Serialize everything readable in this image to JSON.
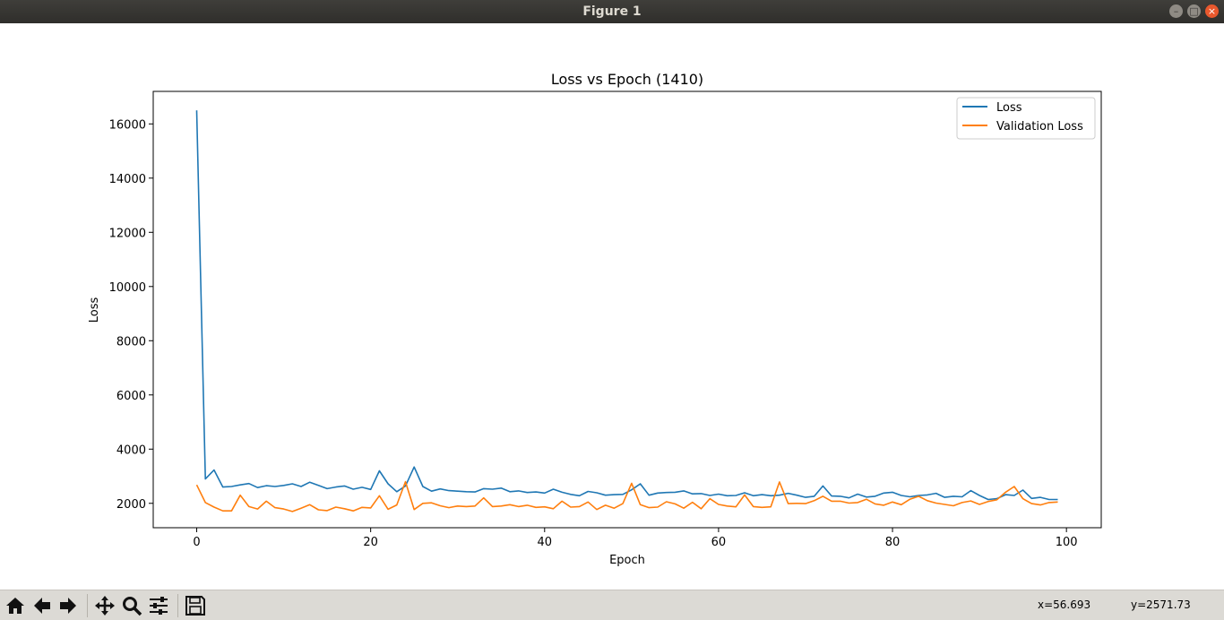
{
  "window": {
    "title": "Figure 1"
  },
  "icons": {
    "home": "home-icon",
    "back": "arrow-left-icon",
    "forward": "arrow-right-icon",
    "pan": "move-icon",
    "zoom": "magnifier-icon",
    "configure": "sliders-icon",
    "save": "floppy-disk-icon"
  },
  "status": {
    "x_readout": "x=56.693",
    "y_readout": "y=2571.73"
  },
  "colors": {
    "loss": "#1f77b4",
    "validation": "#ff7f0e",
    "toolbar": "#dcdad5",
    "titlebar": "#3a3935"
  },
  "chart_data": {
    "type": "line",
    "title": "Loss vs Epoch (1410)",
    "xlabel": "Epoch",
    "ylabel": "Loss",
    "xlim": [
      -5,
      104
    ],
    "ylim": [
      1100,
      17200
    ],
    "xticks": [
      0,
      20,
      40,
      60,
      80,
      100
    ],
    "yticks": [
      2000,
      4000,
      6000,
      8000,
      10000,
      12000,
      14000,
      16000
    ],
    "grid": false,
    "legend": "top-right",
    "x": [
      0,
      1,
      2,
      3,
      4,
      5,
      6,
      7,
      8,
      9,
      10,
      11,
      12,
      13,
      14,
      15,
      16,
      17,
      18,
      19,
      20,
      21,
      22,
      23,
      24,
      25,
      26,
      27,
      28,
      29,
      30,
      31,
      32,
      33,
      34,
      35,
      36,
      37,
      38,
      39,
      40,
      41,
      42,
      43,
      44,
      45,
      46,
      47,
      48,
      49,
      50,
      51,
      52,
      53,
      54,
      55,
      56,
      57,
      58,
      59,
      60,
      61,
      62,
      63,
      64,
      65,
      66,
      67,
      68,
      69,
      70,
      71,
      72,
      73,
      74,
      75,
      76,
      77,
      78,
      79,
      80,
      81,
      82,
      83,
      84,
      85,
      86,
      87,
      88,
      89,
      90,
      91,
      92,
      93,
      94,
      95,
      96,
      97,
      98,
      99
    ],
    "series": [
      {
        "name": "Loss",
        "values": [
          16500,
          2900,
          3230,
          2600,
          2620,
          2680,
          2730,
          2580,
          2650,
          2620,
          2660,
          2720,
          2620,
          2780,
          2660,
          2540,
          2600,
          2640,
          2520,
          2590,
          2510,
          3200,
          2720,
          2430,
          2640,
          3340,
          2620,
          2450,
          2530,
          2470,
          2450,
          2430,
          2420,
          2540,
          2520,
          2560,
          2430,
          2460,
          2400,
          2420,
          2380,
          2520,
          2410,
          2330,
          2280,
          2440,
          2390,
          2300,
          2320,
          2330,
          2500,
          2720,
          2300,
          2380,
          2400,
          2410,
          2460,
          2350,
          2360,
          2290,
          2340,
          2280,
          2290,
          2390,
          2280,
          2320,
          2280,
          2300,
          2370,
          2300,
          2220,
          2260,
          2640,
          2270,
          2260,
          2200,
          2340,
          2230,
          2260,
          2380,
          2410,
          2290,
          2240,
          2290,
          2310,
          2370,
          2220,
          2260,
          2240,
          2470,
          2290,
          2140,
          2170,
          2320,
          2290,
          2490,
          2180,
          2220,
          2140,
          2140
        ]
      },
      {
        "name": "Validation Loss",
        "values": [
          2680,
          2030,
          1860,
          1720,
          1720,
          2300,
          1880,
          1790,
          2080,
          1840,
          1790,
          1700,
          1820,
          1950,
          1760,
          1730,
          1860,
          1800,
          1720,
          1850,
          1830,
          2280,
          1780,
          1940,
          2800,
          1770,
          2000,
          2020,
          1910,
          1840,
          1900,
          1880,
          1900,
          2200,
          1880,
          1900,
          1950,
          1880,
          1930,
          1850,
          1870,
          1800,
          2080,
          1860,
          1880,
          2050,
          1770,
          1930,
          1820,
          1990,
          2740,
          1950,
          1840,
          1860,
          2060,
          1980,
          1820,
          2040,
          1800,
          2170,
          1960,
          1900,
          1870,
          2310,
          1880,
          1850,
          1870,
          2790,
          1990,
          2000,
          1990,
          2100,
          2260,
          2080,
          2080,
          2010,
          2030,
          2150,
          1980,
          1930,
          2050,
          1950,
          2150,
          2260,
          2100,
          2010,
          1960,
          1910,
          2030,
          2090,
          1960,
          2070,
          2130,
          2410,
          2620,
          2170,
          1990,
          1940,
          2030,
          2050
        ]
      }
    ]
  }
}
